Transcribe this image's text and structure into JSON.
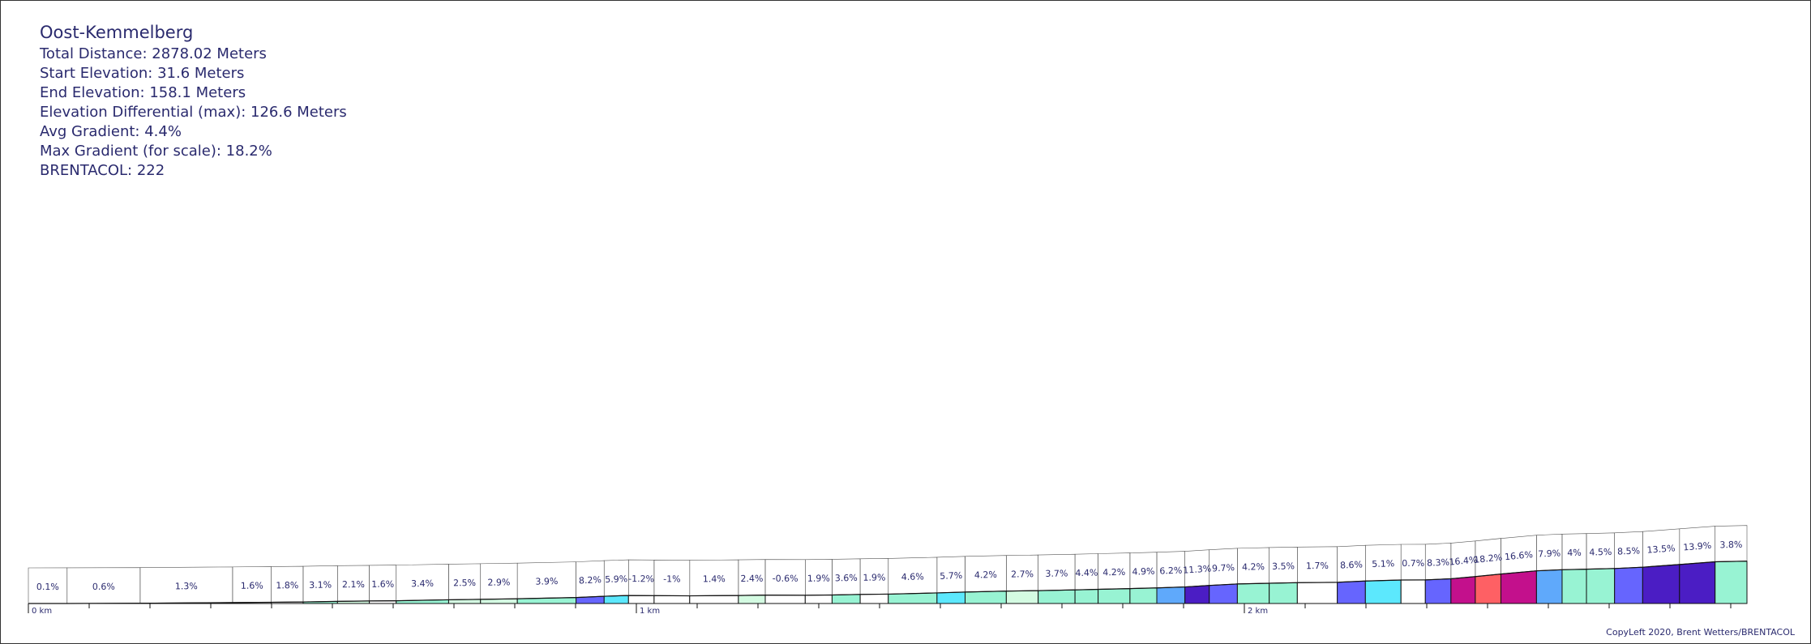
{
  "info": {
    "title": "Oost-Kemmelberg",
    "total_distance": "Total Distance: 2878.02 Meters",
    "start_elevation": "Start Elevation: 31.6 Meters",
    "end_elevation": "End Elevation: 158.1 Meters",
    "elevation_diff": "Elevation Differential (max): 126.6 Meters",
    "avg_gradient": "Avg Gradient: 4.4%",
    "max_gradient": "Max Gradient (for scale): 18.2%",
    "brentacol": "BRENTACOL: 222"
  },
  "footer": "CopyLeft 2020, Brent Wetters/BRENTACOL",
  "chart_data": {
    "type": "area",
    "title": "Oost-Kemmelberg",
    "x_unit": "km",
    "x_ticks": [
      "0 km",
      "1 km",
      "2 km"
    ],
    "colors": {
      "white": "#ffffff",
      "pale": "#d4fbe2",
      "mint": "#98f3d3",
      "cyan": "#5ce8fd",
      "sky": "#5fa9fb",
      "blue": "#6665fe",
      "indigo": "#4b1dc4",
      "magenta": "#c3108c",
      "coral": "#fe6064"
    },
    "segments": [
      {
        "len": 62,
        "grade": "0.1%",
        "color": "white"
      },
      {
        "len": 117,
        "grade": "0.6%",
        "color": "white"
      },
      {
        "len": 148,
        "grade": "1.3%",
        "color": "white"
      },
      {
        "len": 62,
        "grade": "1.6%",
        "color": "white"
      },
      {
        "len": 51,
        "grade": "1.8%",
        "color": "white"
      },
      {
        "len": 55,
        "grade": "3.1%",
        "color": "mint"
      },
      {
        "len": 51,
        "grade": "2.1%",
        "color": "pale"
      },
      {
        "len": 43,
        "grade": "1.6%",
        "color": "white"
      },
      {
        "len": 84,
        "grade": "3.4%",
        "color": "mint"
      },
      {
        "len": 51,
        "grade": "2.5%",
        "color": "pale"
      },
      {
        "len": 59,
        "grade": "2.9%",
        "color": "pale"
      },
      {
        "len": 94,
        "grade": "3.9%",
        "color": "mint"
      },
      {
        "len": 45,
        "grade": "8.2%",
        "color": "blue"
      },
      {
        "len": 39,
        "grade": "5.9%",
        "color": "cyan"
      },
      {
        "len": 41,
        "grade": "-1.2%",
        "color": "white"
      },
      {
        "len": 57,
        "grade": "-1%",
        "color": "white"
      },
      {
        "len": 78,
        "grade": "1.4%",
        "color": "white"
      },
      {
        "len": 43,
        "grade": "2.4%",
        "color": "pale"
      },
      {
        "len": 64,
        "grade": "-0.6%",
        "color": "white"
      },
      {
        "len": 43,
        "grade": "1.9%",
        "color": "white"
      },
      {
        "len": 45,
        "grade": "3.6%",
        "color": "mint"
      },
      {
        "len": 45,
        "grade": "1.9%",
        "color": "white"
      },
      {
        "len": 78,
        "grade": "4.6%",
        "color": "mint"
      },
      {
        "len": 45,
        "grade": "5.7%",
        "color": "cyan"
      },
      {
        "len": 66,
        "grade": "4.2%",
        "color": "mint"
      },
      {
        "len": 51,
        "grade": "2.7%",
        "color": "pale"
      },
      {
        "len": 59,
        "grade": "3.7%",
        "color": "mint"
      },
      {
        "len": 37,
        "grade": "4.4%",
        "color": "mint"
      },
      {
        "len": 51,
        "grade": "4.2%",
        "color": "mint"
      },
      {
        "len": 43,
        "grade": "4.9%",
        "color": "mint"
      },
      {
        "len": 45,
        "grade": "6.2%",
        "color": "sky"
      },
      {
        "len": 39,
        "grade": "11.3%",
        "color": "indigo"
      },
      {
        "len": 45,
        "grade": "9.7%",
        "color": "blue"
      },
      {
        "len": 51,
        "grade": "4.2%",
        "color": "mint"
      },
      {
        "len": 45,
        "grade": "3.5%",
        "color": "mint"
      },
      {
        "len": 64,
        "grade": "1.7%",
        "color": "white"
      },
      {
        "len": 45,
        "grade": "8.6%",
        "color": "blue"
      },
      {
        "len": 57,
        "grade": "5.1%",
        "color": "cyan"
      },
      {
        "len": 39,
        "grade": "0.7%",
        "color": "white"
      },
      {
        "len": 41,
        "grade": "8.3%",
        "color": "blue"
      },
      {
        "len": 39,
        "grade": "16.4%",
        "color": "magenta"
      },
      {
        "len": 41,
        "grade": "18.2%",
        "color": "coral"
      },
      {
        "len": 57,
        "grade": "16.6%",
        "color": "magenta"
      },
      {
        "len": 41,
        "grade": "7.9%",
        "color": "sky"
      },
      {
        "len": 39,
        "grade": "4%",
        "color": "mint"
      },
      {
        "len": 45,
        "grade": "4.5%",
        "color": "mint"
      },
      {
        "len": 45,
        "grade": "8.5%",
        "color": "blue"
      },
      {
        "len": 59,
        "grade": "13.5%",
        "color": "indigo"
      },
      {
        "len": 57,
        "grade": "13.9%",
        "color": "indigo"
      },
      {
        "len": 51,
        "grade": "3.8%",
        "color": "mint"
      }
    ]
  }
}
